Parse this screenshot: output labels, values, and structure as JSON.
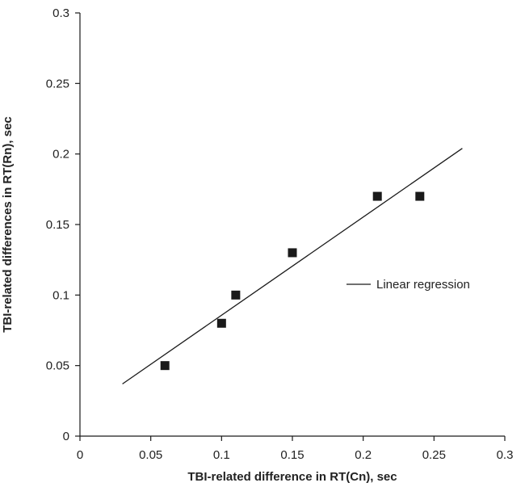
{
  "chart_data": {
    "type": "scatter",
    "title": "",
    "xlabel": "TBI-related difference in RT(Cn), sec",
    "ylabel": "TBI-related differences in RT(Rn), sec",
    "xlim": [
      0,
      0.3
    ],
    "ylim": [
      0,
      0.3
    ],
    "x_ticks": [
      "0",
      "0.05",
      "0.1",
      "0.15",
      "0.2",
      "0.25",
      "0.3"
    ],
    "y_ticks": [
      "0",
      "0.05",
      "0.1",
      "0.15",
      "0.2",
      "0.25",
      "0.3"
    ],
    "grid": false,
    "legend_position": "right",
    "series": [
      {
        "type": "scatter",
        "marker": "square",
        "color": "#1a1a1a",
        "x": [
          0.06,
          0.1,
          0.11,
          0.15,
          0.21,
          0.24
        ],
        "y": [
          0.05,
          0.08,
          0.1,
          0.13,
          0.17,
          0.17
        ]
      },
      {
        "name": "Linear regression",
        "type": "line",
        "color": "#1a1a1a",
        "x": [
          0.03,
          0.27
        ],
        "y": [
          0.037,
          0.204
        ]
      }
    ]
  }
}
